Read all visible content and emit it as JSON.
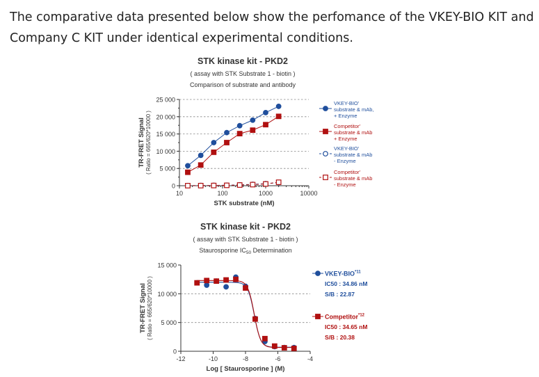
{
  "intro": "The comparative data presented below show the perfomance of the VKEY-BIO KIT and Company C KIT under identical experimental conditions.",
  "colors": {
    "blue": "#1f4e9c",
    "red": "#b01010",
    "grid": "#888888"
  },
  "chart_data": [
    {
      "type": "line",
      "title": "STK kinase kit - PKD2",
      "subtitle": "( assay with STK Substrate 1 - biotin )",
      "subtitle2": "Comparison of substrate and antibody",
      "xlabel": "STK substrate (nM)",
      "ylabel": "TR-FRET Signal",
      "ylabel2": "( Ratio = 665/620*10000 )",
      "xscale": "log",
      "xlim": [
        10,
        10000
      ],
      "ylim": [
        0,
        25000
      ],
      "xticks": [
        "10",
        "100",
        "1000",
        "10000"
      ],
      "yticks": [
        "0",
        "5 000",
        "10 000",
        "15 000",
        "20 000",
        "25 000"
      ],
      "grid": "horizontal dashed",
      "legend_placement": "right",
      "x": [
        15.6,
        31.25,
        62.5,
        125,
        250,
        500,
        1000,
        2000
      ],
      "series": [
        {
          "name": [
            "VKEY-BIO'",
            "substrate & mAb,",
            "+ Enzyme"
          ],
          "color": "#1f4e9c",
          "marker": "circle",
          "style": "solid",
          "values": [
            5800,
            8800,
            12500,
            15400,
            17400,
            19000,
            21200,
            23000
          ]
        },
        {
          "name": [
            "Competitor'",
            "substrate & mAb",
            "+ Enzyme"
          ],
          "color": "#b01010",
          "marker": "square",
          "style": "solid",
          "values": [
            3900,
            6000,
            9700,
            12500,
            15100,
            16100,
            17700,
            20100
          ]
        },
        {
          "name": [
            "VKEY-BIO'",
            "substrate & mAb",
            "- Enzyme"
          ],
          "color": "#1f4e9c",
          "marker": "circle-open",
          "style": "dashed",
          "values": [
            50,
            60,
            90,
            150,
            250,
            400,
            600,
            900
          ]
        },
        {
          "name": [
            "Competitor'",
            "substrate & mAb",
            "- Enzyme"
          ],
          "color": "#b01010",
          "marker": "square-open",
          "style": "dashed",
          "values": [
            20,
            30,
            60,
            110,
            200,
            320,
            520,
            1000
          ]
        }
      ]
    },
    {
      "type": "scatter",
      "title": "STK kinase kit  -  PKD2",
      "subtitle": "( assay with STK Substrate 1 - biotin )",
      "subtitle2": "Staurosporine IC50 Determination",
      "xlabel": "Log [ Staurosporine ]  (M)",
      "ylabel": "TR-FRET Signal",
      "ylabel2": "( Ratio = 665/620*10000 )",
      "xlim": [
        -12,
        -4
      ],
      "ylim": [
        0,
        15000
      ],
      "xticks": [
        "-12",
        "-10",
        "-8",
        "-6",
        "-4"
      ],
      "yticks": [
        "0",
        "5 000",
        "10 000",
        "15 000"
      ],
      "grid": "horizontal dashed",
      "legend_placement": "right",
      "x": [
        -11,
        -10.4,
        -9.8,
        -9.2,
        -8.6,
        -8,
        -7.4,
        -6.8,
        -6.2,
        -5.6,
        -5
      ],
      "series": [
        {
          "name": "VKEY-BIO*11",
          "ic50": "IC50 : 34.86 nM",
          "sb": "S/B : 22.87",
          "color": "#1f4e9c",
          "marker": "circle",
          "values": [
            11900,
            11500,
            12200,
            11200,
            12900,
            11300,
            5700,
            1700,
            800,
            650,
            650
          ],
          "fit": {
            "top": 12000,
            "bottom": 700,
            "logIC50": -7.46
          }
        },
        {
          "name": "Competitor*12",
          "ic50": "IC50 : 34.65 nM",
          "sb": "S/B : 20.38",
          "color": "#b01010",
          "marker": "square",
          "values": [
            11900,
            12300,
            12200,
            12400,
            12500,
            11000,
            5600,
            2200,
            900,
            600,
            500
          ],
          "fit": {
            "top": 12300,
            "bottom": 650,
            "logIC50": -7.46
          }
        }
      ]
    }
  ]
}
